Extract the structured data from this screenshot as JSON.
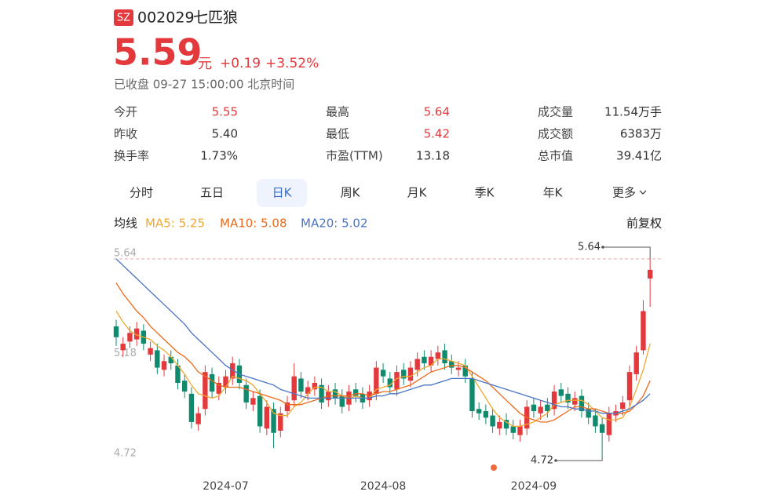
{
  "header": {
    "exchange": "SZ",
    "code": "002029",
    "name": "七匹狼",
    "price": "5.59",
    "unit": "元",
    "change": "+0.19",
    "change_pct": "+3.52%",
    "status": "已收盘 09-27 15:00:00 北京时间"
  },
  "stats": [
    [
      {
        "label": "今开",
        "value": "5.55",
        "color": "#e4393c"
      },
      {
        "label": "最高",
        "value": "5.64",
        "color": "#e4393c"
      },
      {
        "label": "成交量",
        "value": "11.54万手"
      }
    ],
    [
      {
        "label": "昨收",
        "value": "5.40"
      },
      {
        "label": "最低",
        "value": "5.42",
        "color": "#e4393c"
      },
      {
        "label": "成交额",
        "value": "6383万"
      }
    ],
    [
      {
        "label": "换手率",
        "value": "1.73%"
      },
      {
        "label": "市盈(TTM)",
        "value": "13.18"
      },
      {
        "label": "总市值",
        "value": "39.41亿"
      }
    ]
  ],
  "tabs": [
    "分时",
    "五日",
    "日K",
    "周K",
    "月K",
    "季K",
    "年K",
    "更多"
  ],
  "selected_tab": 2,
  "ma_title": "均线",
  "adjust": "前复权",
  "chart_data": {
    "type": "candlestick",
    "up_color": "#e4393c",
    "down_color": "#0f8a6d",
    "categories": [
      null,
      null,
      null,
      null,
      null,
      null,
      null,
      null,
      null,
      null,
      null,
      null,
      null,
      null,
      null,
      null,
      "2024-07",
      null,
      null,
      null,
      null,
      null,
      null,
      null,
      null,
      null,
      null,
      null,
      null,
      null,
      null,
      null,
      null,
      null,
      null,
      null,
      null,
      null,
      null,
      "2024-08",
      null,
      null,
      null,
      null,
      null,
      null,
      null,
      null,
      null,
      null,
      null,
      null,
      null,
      null,
      null,
      null,
      null,
      null,
      null,
      null,
      null,
      "2024-09",
      null,
      null,
      null,
      null,
      null,
      null,
      null,
      null,
      null,
      null,
      null,
      null,
      null,
      null,
      null,
      null,
      null
    ],
    "open": [
      5.33,
      5.22,
      5.26,
      5.27,
      5.31,
      5.2,
      5.22,
      5.13,
      5.19,
      5.15,
      5.08,
      5.02,
      4.88,
      4.95,
      5.11,
      5.02,
      5.05,
      5.09,
      5.15,
      5.06,
      4.97,
      5.01,
      4.86,
      4.95,
      4.85,
      4.94,
      4.99,
      5.09,
      5.02,
      5.04,
      5.06,
      4.99,
      5.04,
      5.01,
      4.97,
      5.04,
      5.02,
      4.99,
      5.02,
      5.13,
      5.09,
      5.04,
      5.13,
      5.08,
      5.13,
      5.19,
      5.15,
      5.18,
      5.22,
      5.17,
      5.13,
      5.15,
      5.09,
      4.95,
      4.94,
      4.92,
      4.86,
      4.9,
      4.87,
      4.83,
      4.86,
      4.97,
      4.93,
      4.97,
      4.95,
      5.04,
      5.02,
      4.97,
      5.01,
      4.95,
      4.92,
      4.88,
      4.83,
      4.92,
      4.95,
      4.99,
      5.11,
      5.22,
      5.55
    ],
    "high": [
      5.36,
      5.28,
      5.33,
      5.35,
      5.34,
      5.26,
      5.25,
      5.2,
      5.22,
      5.18,
      5.11,
      5.05,
      4.96,
      5.15,
      5.14,
      5.1,
      5.13,
      5.19,
      5.18,
      5.09,
      5.03,
      5.04,
      4.99,
      4.98,
      4.96,
      5.01,
      5.16,
      5.12,
      5.08,
      5.1,
      5.09,
      5.06,
      5.07,
      5.04,
      5.06,
      5.07,
      5.05,
      5.06,
      5.17,
      5.16,
      5.12,
      5.15,
      5.16,
      5.17,
      5.21,
      5.22,
      5.22,
      5.24,
      5.25,
      5.2,
      5.17,
      5.18,
      5.12,
      4.98,
      4.97,
      4.95,
      4.92,
      4.93,
      4.9,
      4.9,
      4.99,
      5.0,
      4.99,
      5.0,
      5.06,
      5.07,
      5.05,
      5.03,
      5.04,
      4.98,
      4.95,
      4.91,
      4.96,
      4.97,
      5.01,
      5.15,
      5.24,
      5.45,
      5.64
    ],
    "low": [
      5.24,
      5.19,
      5.23,
      5.24,
      5.22,
      5.17,
      5.11,
      5.1,
      5.13,
      5.04,
      5.0,
      4.86,
      4.85,
      4.92,
      5.0,
      4.99,
      5.02,
      5.06,
      5.04,
      4.95,
      4.94,
      4.84,
      4.83,
      4.77,
      4.82,
      4.91,
      4.96,
      5.0,
      4.99,
      5.01,
      4.95,
      4.96,
      4.97,
      4.93,
      4.94,
      4.98,
      4.95,
      4.96,
      4.99,
      5.07,
      5.02,
      5.01,
      5.06,
      5.05,
      5.1,
      5.13,
      5.12,
      5.15,
      5.13,
      5.11,
      5.1,
      5.07,
      4.91,
      4.9,
      4.88,
      4.84,
      4.83,
      4.83,
      4.81,
      4.8,
      4.83,
      4.91,
      4.9,
      4.91,
      4.92,
      4.98,
      4.95,
      4.94,
      4.91,
      4.88,
      4.84,
      4.72,
      4.8,
      4.89,
      4.92,
      4.96,
      5.08,
      5.2,
      5.42
    ],
    "close": [
      5.28,
      5.25,
      5.3,
      5.32,
      5.25,
      5.23,
      5.14,
      5.17,
      5.16,
      5.07,
      5.03,
      4.89,
      4.93,
      5.12,
      5.03,
      5.07,
      5.1,
      5.16,
      5.07,
      4.98,
      5.0,
      4.87,
      4.96,
      4.84,
      4.93,
      4.98,
      5.1,
      5.03,
      5.05,
      5.07,
      4.98,
      5.03,
      5.0,
      4.96,
      5.03,
      5.01,
      4.98,
      5.03,
      5.14,
      5.1,
      5.05,
      5.12,
      5.09,
      5.14,
      5.18,
      5.16,
      5.19,
      5.21,
      5.16,
      5.14,
      5.14,
      5.1,
      4.94,
      4.93,
      4.91,
      4.87,
      4.89,
      4.86,
      4.84,
      4.87,
      4.96,
      4.94,
      4.96,
      4.94,
      5.03,
      5.01,
      4.98,
      5.0,
      4.94,
      4.91,
      4.87,
      4.84,
      4.93,
      4.94,
      4.98,
      5.12,
      5.21,
      5.4,
      5.59
    ],
    "series": [
      {
        "name": "MA5: 5.25",
        "color": "#f0a830",
        "values": [
          5.4,
          5.35,
          5.31,
          5.29,
          5.28,
          5.27,
          5.24,
          5.22,
          5.19,
          5.15,
          5.11,
          5.06,
          5.02,
          5.01,
          5.0,
          5.01,
          5.05,
          5.1,
          5.09,
          5.08,
          5.06,
          5.02,
          4.98,
          4.93,
          4.92,
          4.92,
          4.96,
          4.98,
          5.02,
          5.05,
          5.05,
          5.03,
          5.03,
          5.01,
          5.0,
          5.01,
          5.0,
          5.0,
          5.04,
          5.05,
          5.06,
          5.09,
          5.1,
          5.1,
          5.12,
          5.14,
          5.15,
          5.18,
          5.18,
          5.17,
          5.16,
          5.15,
          5.1,
          5.05,
          5.0,
          4.95,
          4.91,
          4.89,
          4.87,
          4.87,
          4.88,
          4.89,
          4.91,
          4.93,
          4.97,
          4.98,
          4.99,
          4.99,
          4.99,
          4.97,
          4.94,
          4.91,
          4.9,
          4.9,
          4.91,
          4.96,
          5.04,
          5.13,
          5.25
        ]
      },
      {
        "name": "MA10: 5.08",
        "color": "#ec6a1c",
        "values": [
          5.53,
          5.48,
          5.44,
          5.4,
          5.37,
          5.33,
          5.3,
          5.27,
          5.24,
          5.21,
          5.19,
          5.16,
          5.12,
          5.1,
          5.08,
          5.06,
          5.05,
          5.05,
          5.05,
          5.04,
          5.03,
          5.02,
          5.01,
          5.0,
          4.99,
          4.97,
          4.97,
          4.97,
          4.98,
          4.99,
          5.0,
          5.01,
          5.01,
          5.01,
          5.01,
          5.02,
          5.02,
          5.01,
          5.02,
          5.03,
          5.03,
          5.04,
          5.05,
          5.06,
          5.08,
          5.1,
          5.12,
          5.13,
          5.14,
          5.15,
          5.15,
          5.14,
          5.12,
          5.1,
          5.08,
          5.05,
          5.02,
          4.99,
          4.96,
          4.93,
          4.91,
          4.9,
          4.89,
          4.89,
          4.9,
          4.92,
          4.94,
          4.96,
          4.96,
          4.95,
          4.95,
          4.94,
          4.93,
          4.93,
          4.93,
          4.94,
          4.97,
          5.01,
          5.08
        ]
      },
      {
        "name": "MA20: 5.02",
        "color": "#4a74c6",
        "values": [
          5.64,
          5.61,
          5.58,
          5.55,
          5.52,
          5.49,
          5.46,
          5.43,
          5.4,
          5.37,
          5.34,
          5.3,
          5.27,
          5.24,
          5.21,
          5.18,
          5.15,
          5.13,
          5.11,
          5.1,
          5.09,
          5.08,
          5.07,
          5.06,
          5.04,
          5.03,
          5.02,
          5.01,
          5.0,
          5.0,
          5.0,
          5.0,
          5.0,
          5.0,
          5.0,
          5.0,
          5.0,
          5.0,
          5.01,
          5.01,
          5.02,
          5.02,
          5.03,
          5.04,
          5.05,
          5.06,
          5.06,
          5.07,
          5.08,
          5.09,
          5.09,
          5.09,
          5.09,
          5.08,
          5.07,
          5.06,
          5.05,
          5.04,
          5.03,
          5.02,
          5.01,
          5.0,
          4.99,
          4.98,
          4.97,
          4.96,
          4.96,
          4.95,
          4.95,
          4.94,
          4.94,
          4.93,
          4.93,
          4.93,
          4.94,
          4.95,
          4.97,
          4.99,
          5.02
        ]
      }
    ],
    "ylim": [
      4.72,
      5.64
    ],
    "yticks": [
      4.72,
      5.18,
      5.64
    ],
    "high_marker": 5.64,
    "low_marker": 4.72
  }
}
